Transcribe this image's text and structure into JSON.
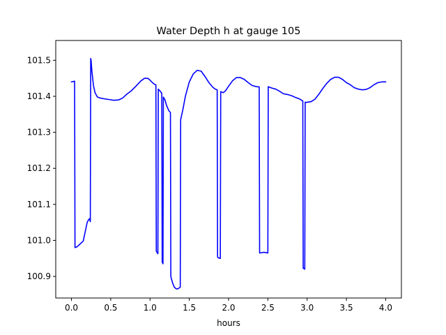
{
  "chart_data": {
    "type": "line",
    "title": "Water Depth h at gauge 105",
    "xlabel": "hours",
    "ylabel": "",
    "xlim": [
      -0.2,
      4.2
    ],
    "ylim": [
      100.84,
      101.555
    ],
    "x_ticks": [
      {
        "value": 0.0,
        "label": "0.0"
      },
      {
        "value": 0.5,
        "label": "0.5"
      },
      {
        "value": 1.0,
        "label": "1.0"
      },
      {
        "value": 1.5,
        "label": "1.5"
      },
      {
        "value": 2.0,
        "label": "2.0"
      },
      {
        "value": 2.5,
        "label": "2.5"
      },
      {
        "value": 3.0,
        "label": "3.0"
      },
      {
        "value": 3.5,
        "label": "3.5"
      },
      {
        "value": 4.0,
        "label": "4.0"
      }
    ],
    "y_ticks": [
      {
        "value": 100.9,
        "label": "100.9"
      },
      {
        "value": 101.0,
        "label": "101.0"
      },
      {
        "value": 101.1,
        "label": "101.1"
      },
      {
        "value": 101.2,
        "label": "101.2"
      },
      {
        "value": 101.3,
        "label": "101.3"
      },
      {
        "value": 101.4,
        "label": "101.4"
      },
      {
        "value": 101.5,
        "label": "101.5"
      }
    ],
    "grid": false,
    "series": [
      {
        "color": "#0000ff",
        "x": [
          0.0,
          0.04,
          0.045,
          0.07,
          0.1,
          0.15,
          0.2,
          0.22,
          0.23,
          0.24,
          0.245,
          0.25,
          0.26,
          0.28,
          0.3,
          0.33,
          0.37,
          0.42,
          0.48,
          0.54,
          0.6,
          0.65,
          0.7,
          0.76,
          0.82,
          0.88,
          0.93,
          0.97,
          1.0,
          1.03,
          1.06,
          1.075,
          1.08,
          1.1,
          1.105,
          1.13,
          1.15,
          1.155,
          1.165,
          1.17,
          1.19,
          1.21,
          1.24,
          1.26,
          1.265,
          1.27,
          1.29,
          1.31,
          1.33,
          1.35,
          1.37,
          1.385,
          1.39,
          1.395,
          1.42,
          1.45,
          1.5,
          1.55,
          1.6,
          1.65,
          1.7,
          1.75,
          1.8,
          1.83,
          1.855,
          1.86,
          1.865,
          1.895,
          1.9,
          1.93,
          1.96,
          2.0,
          2.05,
          2.1,
          2.15,
          2.2,
          2.25,
          2.3,
          2.35,
          2.39,
          2.395,
          2.4,
          2.45,
          2.5,
          2.505,
          2.51,
          2.55,
          2.6,
          2.65,
          2.7,
          2.75,
          2.8,
          2.85,
          2.9,
          2.945,
          2.95,
          2.955,
          2.97,
          2.975,
          2.98,
          3.05,
          3.1,
          3.15,
          3.2,
          3.25,
          3.3,
          3.35,
          3.4,
          3.45,
          3.5,
          3.55,
          3.6,
          3.65,
          3.7,
          3.75,
          3.8,
          3.85,
          3.9,
          3.95,
          4.0
        ],
        "y": [
          101.44,
          101.442,
          100.98,
          100.982,
          100.988,
          100.998,
          101.05,
          101.058,
          101.06,
          101.052,
          101.505,
          101.5,
          101.47,
          101.43,
          101.41,
          101.398,
          101.395,
          101.393,
          101.391,
          101.389,
          101.39,
          101.395,
          101.405,
          101.415,
          101.428,
          101.442,
          101.45,
          101.45,
          101.445,
          101.438,
          101.433,
          101.432,
          100.97,
          100.963,
          101.42,
          101.414,
          101.408,
          100.94,
          100.935,
          101.398,
          101.39,
          101.375,
          101.36,
          101.355,
          100.9,
          100.895,
          100.88,
          100.87,
          100.866,
          100.865,
          100.868,
          100.87,
          101.335,
          101.34,
          101.365,
          101.4,
          101.44,
          101.462,
          101.472,
          101.47,
          101.455,
          101.438,
          101.425,
          101.42,
          101.418,
          100.955,
          100.952,
          100.95,
          101.413,
          101.41,
          101.415,
          101.428,
          101.443,
          101.452,
          101.452,
          101.447,
          101.438,
          101.43,
          101.427,
          101.426,
          100.965,
          100.965,
          100.967,
          100.965,
          101.427,
          101.426,
          101.423,
          101.42,
          101.414,
          101.407,
          101.405,
          101.402,
          101.397,
          101.393,
          101.387,
          100.922,
          100.923,
          100.92,
          101.384,
          101.383,
          101.385,
          101.392,
          101.406,
          101.422,
          101.436,
          101.447,
          101.453,
          101.453,
          101.447,
          101.438,
          101.432,
          101.424,
          101.42,
          101.418,
          101.419,
          101.424,
          101.432,
          101.438,
          101.44,
          101.44
        ]
      }
    ]
  }
}
